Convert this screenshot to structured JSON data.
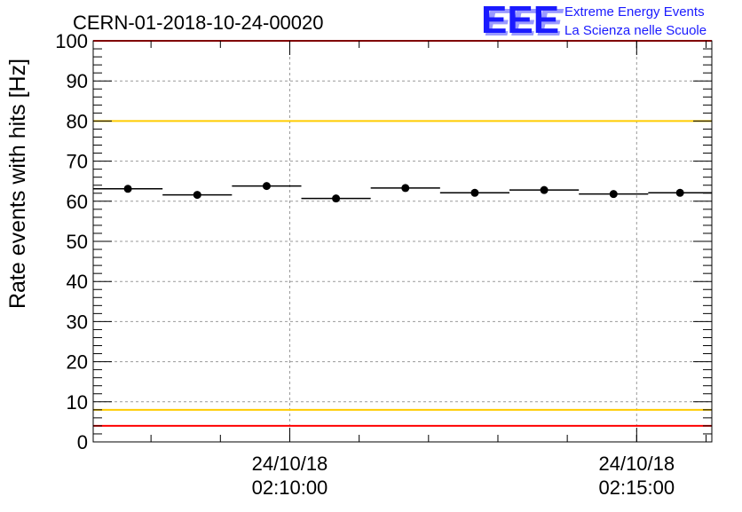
{
  "branding": {
    "logo_text": "EEE",
    "line1": "Extreme Energy Events",
    "line2": "La Scienza nelle Scuole",
    "color": "#1a1aff"
  },
  "chart_data": {
    "type": "scatter",
    "title": "CERN-01-2018-10-24-00020",
    "ylabel": "Rate events with hits [Hz]",
    "xlabel": "",
    "xlim": [
      "2018-10-24 02:07:10",
      "2018-10-24 02:16:05"
    ],
    "ylim": [
      0,
      100
    ],
    "y_ticks": [
      "0",
      "10",
      "20",
      "30",
      "40",
      "50",
      "60",
      "70",
      "80",
      "90",
      "100"
    ],
    "x_tick_labels": [
      {
        "t": "2018-10-24 02:10:00",
        "date": "24/10/18",
        "time": "02:10:00"
      },
      {
        "t": "2018-10-24 02:15:00",
        "date": "24/10/18",
        "time": "02:15:00"
      }
    ],
    "grid": true,
    "series": [
      {
        "bin_start": [
          "02:07:10",
          "02:08:10",
          "02:09:10",
          "02:10:10",
          "02:11:10",
          "02:12:10",
          "02:13:10",
          "02:14:10",
          "02:15:10"
        ],
        "bin_end": [
          "02:08:10",
          "02:09:10",
          "02:10:10",
          "02:11:10",
          "02:12:10",
          "02:13:10",
          "02:14:10",
          "02:15:10",
          "02:16:05"
        ],
        "values": [
          63.1,
          61.6,
          63.8,
          60.7,
          63.3,
          62.1,
          62.8,
          61.8,
          62.1
        ]
      }
    ],
    "reference_lines": [
      {
        "y": 100,
        "color": "#ff0000"
      },
      {
        "y": 80,
        "color": "#ffcc00"
      },
      {
        "y": 8,
        "color": "#ffcc00"
      },
      {
        "y": 4,
        "color": "#ff0000"
      }
    ]
  }
}
